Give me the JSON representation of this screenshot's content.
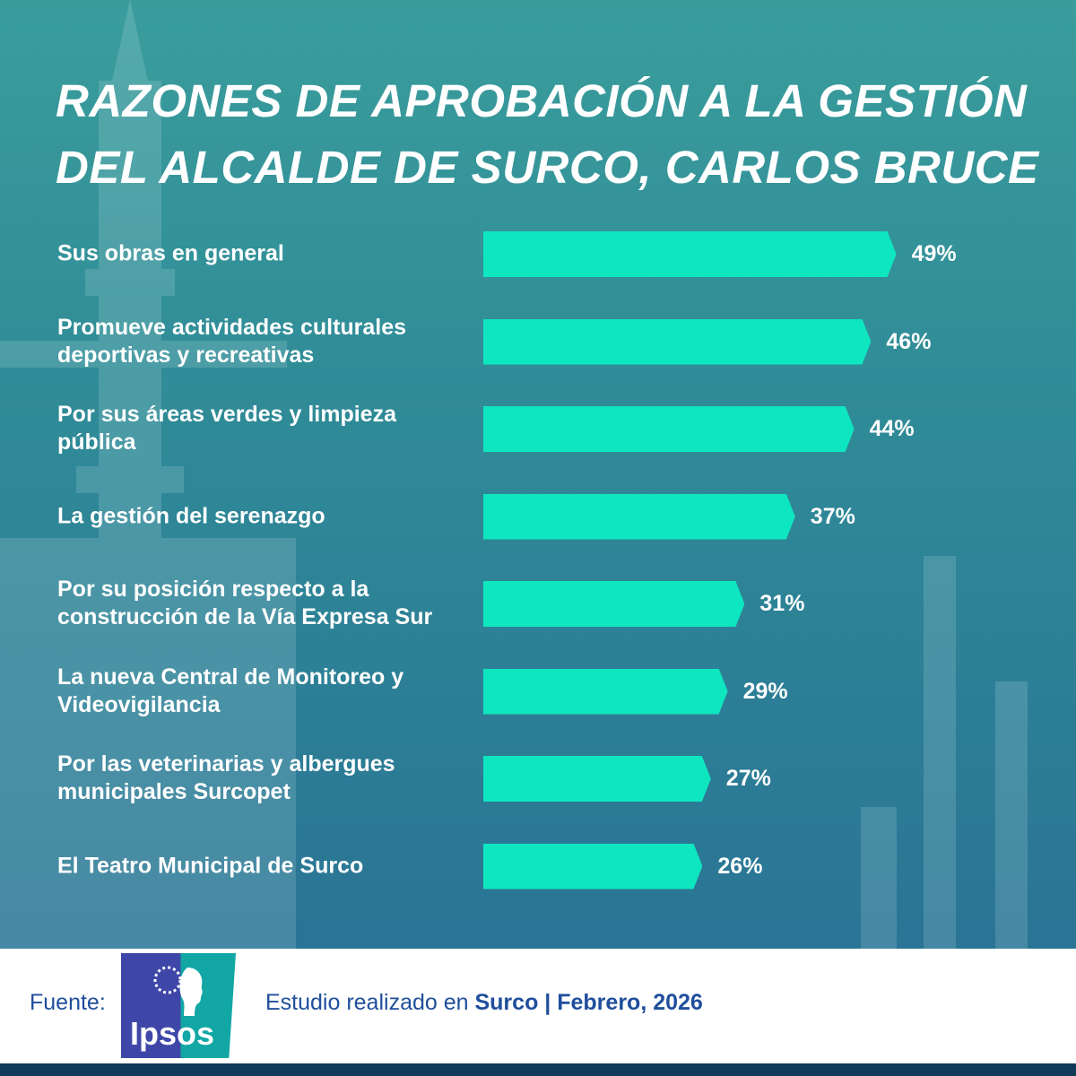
{
  "title": "RAZONES DE APROBACIÓN A LA GESTIÓN DEL ALCALDE DE SURCO, CARLOS BRUCE",
  "colors": {
    "background": "#2f8a97",
    "bar": "#0ee6c0",
    "text": "#ffffff",
    "footer_text": "#1f4e9c",
    "footer_bar": "#0f3a58"
  },
  "chart_data": {
    "type": "bar",
    "orientation": "horizontal",
    "title": "RAZONES DE APROBACIÓN A LA GESTIÓN DEL ALCALDE DE SURCO, CARLOS BRUCE",
    "categories": [
      "Sus obras en general",
      "Promueve actividades culturales deportivas y recreativas",
      "Por sus áreas verdes y limpieza pública",
      "La gestión del serenazgo",
      "Por su posición respecto a la construcción de la Vía Expresa Sur",
      "La nueva Central de Monitoreo y Videovigilancia",
      "Por las veterinarias y albergues municipales Surcopet",
      "El Teatro Municipal de Surco"
    ],
    "values": [
      49,
      46,
      44,
      37,
      31,
      29,
      27,
      26
    ],
    "value_labels": [
      "49%",
      "46%",
      "44%",
      "37%",
      "31%",
      "29%",
      "27%",
      "26%"
    ],
    "unit": "%",
    "xlim": [
      0,
      100
    ],
    "grid": false,
    "legend": "none"
  },
  "footer": {
    "source_label": "Fuente:",
    "logo_text": "Ipsos",
    "study_prefix": "Estudio realizado en ",
    "study_place": "Surco",
    "study_separator": " | ",
    "study_date": "Febrero, 2026"
  }
}
